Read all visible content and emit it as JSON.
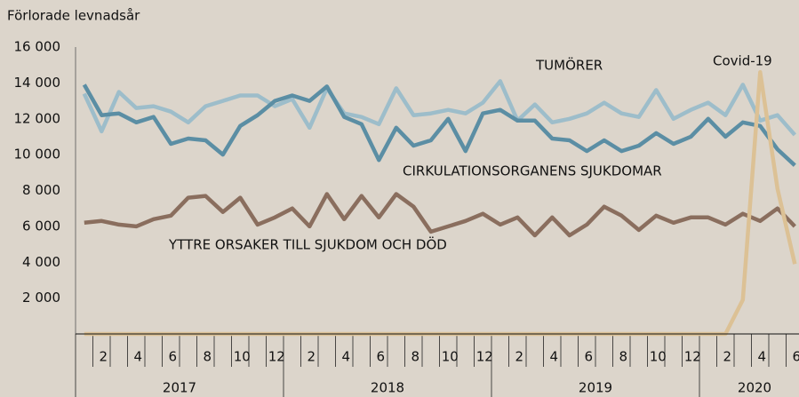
{
  "chart_data": {
    "type": "line",
    "y_axis_label": "Förlorade levnadsår",
    "categories": [
      null,
      "2",
      null,
      "4",
      null,
      "6",
      null,
      "8",
      null,
      "10",
      null,
      "12",
      null,
      "2",
      null,
      "4",
      null,
      "6",
      null,
      "8",
      null,
      "10",
      null,
      "12",
      null,
      "2",
      null,
      "4",
      null,
      "6",
      null,
      "8",
      null,
      "10",
      null,
      "12",
      null,
      "2",
      null,
      "4",
      null,
      "6"
    ],
    "x_groups": [
      "2017",
      "2018",
      "2019",
      "2020"
    ],
    "ylim": [
      0,
      16000
    ],
    "yticks": [
      {
        "value": 2000,
        "label": "2 000"
      },
      {
        "value": 4000,
        "label": "4 000"
      },
      {
        "value": 6000,
        "label": "6 000"
      },
      {
        "value": 8000,
        "label": "8 000"
      },
      {
        "value": 10000,
        "label": "10 000"
      },
      {
        "value": 12000,
        "label": "12 000"
      },
      {
        "value": 14000,
        "label": "14 000"
      },
      {
        "value": 16000,
        "label": "16 000"
      }
    ],
    "series": [
      {
        "name": "TUMÖRER",
        "color": "#9dbdca",
        "values": [
          13400,
          11300,
          13500,
          12600,
          12700,
          12400,
          11800,
          12700,
          13000,
          13300,
          13300,
          12700,
          13100,
          11500,
          13700,
          12300,
          12100,
          11700,
          13700,
          12200,
          12300,
          12500,
          12300,
          12900,
          14100,
          11900,
          12800,
          11800,
          12000,
          12300,
          12900,
          12300,
          12100,
          13600,
          12000,
          12500,
          12900,
          12200,
          13900,
          11900,
          12200,
          11100
        ]
      },
      {
        "name": "CIRKULATIONSORGANENS SJUKDOMAR",
        "color": "#5b8ea4",
        "values": [
          13900,
          12200,
          12300,
          11800,
          12100,
          10600,
          10900,
          10800,
          10000,
          11600,
          12200,
          13000,
          13300,
          13000,
          13800,
          12100,
          11700,
          9700,
          11500,
          10500,
          10800,
          12000,
          10200,
          12300,
          12500,
          11900,
          11900,
          10900,
          10800,
          10200,
          10800,
          10200,
          10500,
          11200,
          10600,
          11000,
          12000,
          11000,
          11800,
          11600,
          10300,
          9400
        ]
      },
      {
        "name": "YTTRE ORSAKER TILL SJUKDOM OCH DÖD",
        "color": "#8a6e5e",
        "values": [
          6200,
          6300,
          6100,
          6000,
          6400,
          6600,
          7600,
          7700,
          6800,
          7600,
          6100,
          6500,
          7000,
          6000,
          7800,
          6400,
          7700,
          6500,
          7800,
          7100,
          5700,
          6000,
          6300,
          6700,
          6100,
          6500,
          5500,
          6500,
          5500,
          6100,
          7100,
          6600,
          5800,
          6600,
          6200,
          6500,
          6500,
          6100,
          6700,
          6300,
          7000,
          6000
        ]
      },
      {
        "name": "Covid-19",
        "color": "#dcc195",
        "values": [
          0,
          0,
          0,
          0,
          0,
          0,
          0,
          0,
          0,
          0,
          0,
          0,
          0,
          0,
          0,
          0,
          0,
          0,
          0,
          0,
          0,
          0,
          0,
          0,
          0,
          0,
          0,
          0,
          0,
          0,
          0,
          0,
          0,
          0,
          0,
          0,
          0,
          0,
          1900,
          14600,
          8100,
          3900
        ]
      }
    ]
  }
}
